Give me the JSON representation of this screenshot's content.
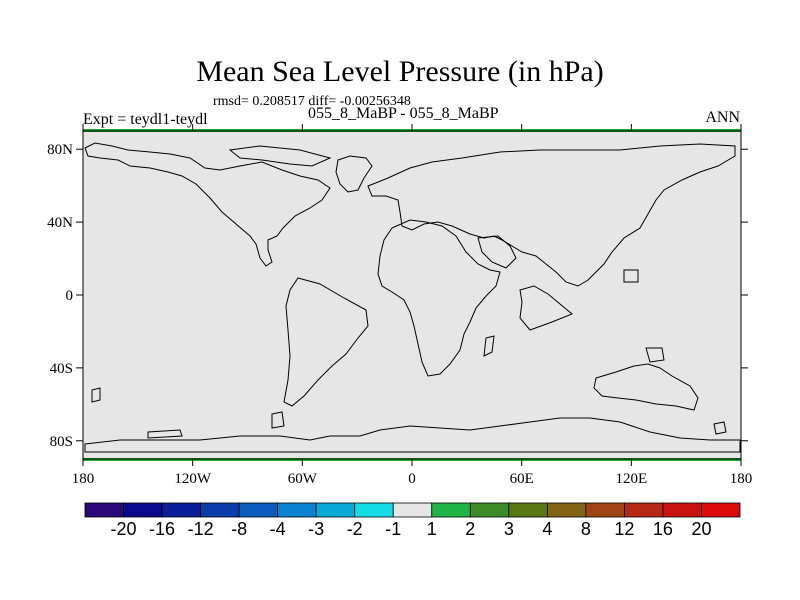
{
  "chart_data": {
    "type": "map",
    "title": "Mean Sea Level Pressure (in hPa)",
    "stats": "rmsd= 0.208517 diff= -0.00256348",
    "left_label": "Expt = teydl1-teydl",
    "center_label": "055_8_MaBP - 055_8_MaBP",
    "right_label": "ANN",
    "field_fill_color": "#e6e6e6",
    "xlim": [
      -180,
      180
    ],
    "ylim": [
      -90,
      90
    ],
    "x_ticks": [
      {
        "value": -180,
        "label": "180"
      },
      {
        "value": -120,
        "label": "120W"
      },
      {
        "value": -60,
        "label": "60W"
      },
      {
        "value": 0,
        "label": "0"
      },
      {
        "value": 60,
        "label": "60E"
      },
      {
        "value": 120,
        "label": "120E"
      },
      {
        "value": 180,
        "label": "180"
      }
    ],
    "y_ticks": [
      {
        "value": 80,
        "label": "80N"
      },
      {
        "value": 40,
        "label": "40N"
      },
      {
        "value": 0,
        "label": "0"
      },
      {
        "value": -40,
        "label": "40S"
      },
      {
        "value": -80,
        "label": "80S"
      }
    ],
    "colorbar": {
      "levels": [
        "-20",
        "-16",
        "-12",
        "-8",
        "-4",
        "-3",
        "-2",
        "-1",
        "1",
        "2",
        "3",
        "4",
        "8",
        "12",
        "16",
        "20"
      ],
      "colors": [
        "#2a0a78",
        "#0a0a8c",
        "#0a1e9a",
        "#0a3caa",
        "#0a5cbe",
        "#0a82d2",
        "#0aaad8",
        "#14dce6",
        "#e6e6e6",
        "#1eb446",
        "#3c8c28",
        "#5a7814",
        "#826414",
        "#a04614",
        "#b42814",
        "#c81410",
        "#dc0a0a"
      ]
    }
  }
}
